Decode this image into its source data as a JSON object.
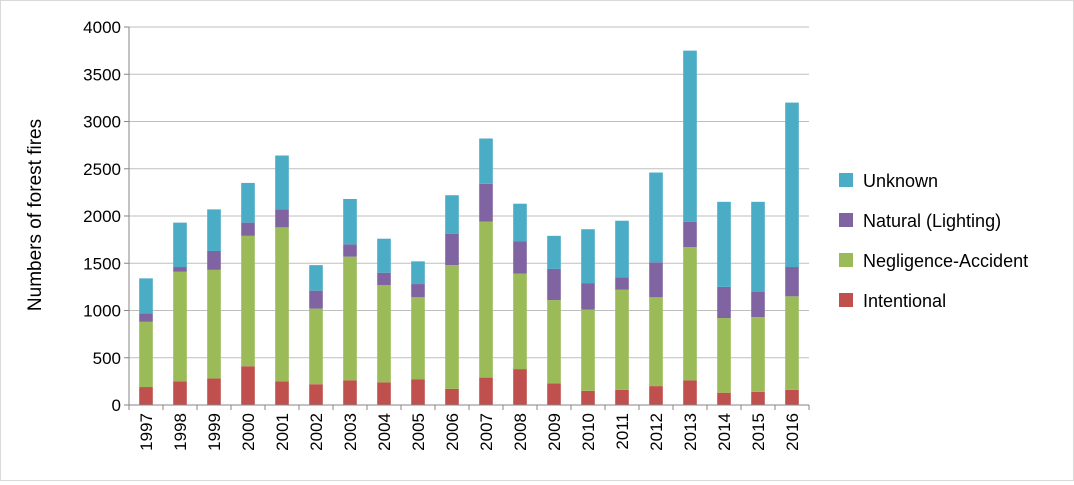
{
  "chart_data": {
    "type": "bar",
    "stacked": true,
    "title": "",
    "xlabel": "",
    "ylabel": "Numbers of  forest  fires",
    "ylim": [
      0,
      4000
    ],
    "yticks": [
      0,
      500,
      1000,
      1500,
      2000,
      2500,
      3000,
      3500,
      4000
    ],
    "grid": true,
    "legend_position": "right",
    "categories": [
      "1997",
      "1998",
      "1999",
      "2000",
      "2001",
      "2002",
      "2003",
      "2004",
      "2005",
      "2006",
      "2007",
      "2008",
      "2009",
      "2010",
      "2011",
      "2012",
      "2013",
      "2014",
      "2015",
      "2016"
    ],
    "series": [
      {
        "name": "Intentional",
        "color": "#c0504d",
        "values": [
          190,
          250,
          280,
          410,
          250,
          220,
          260,
          240,
          270,
          170,
          290,
          380,
          230,
          150,
          160,
          200,
          260,
          130,
          140,
          160
        ]
      },
      {
        "name": "Negligence-Accident",
        "color": "#9bbb59",
        "values": [
          690,
          1160,
          1150,
          1380,
          1630,
          800,
          1310,
          1030,
          870,
          1310,
          1650,
          1010,
          880,
          860,
          1060,
          940,
          1410,
          790,
          790,
          990
        ]
      },
      {
        "name": "Natural (Lighting)",
        "color": "#8064a2",
        "values": [
          90,
          50,
          200,
          140,
          190,
          190,
          130,
          130,
          140,
          330,
          400,
          340,
          330,
          280,
          130,
          370,
          270,
          330,
          270,
          310
        ]
      },
      {
        "name": "Unknown",
        "color": "#4bacc6",
        "values": [
          370,
          470,
          440,
          420,
          570,
          270,
          480,
          360,
          240,
          410,
          480,
          400,
          350,
          570,
          600,
          950,
          1810,
          900,
          950,
          1740
        ]
      }
    ]
  }
}
